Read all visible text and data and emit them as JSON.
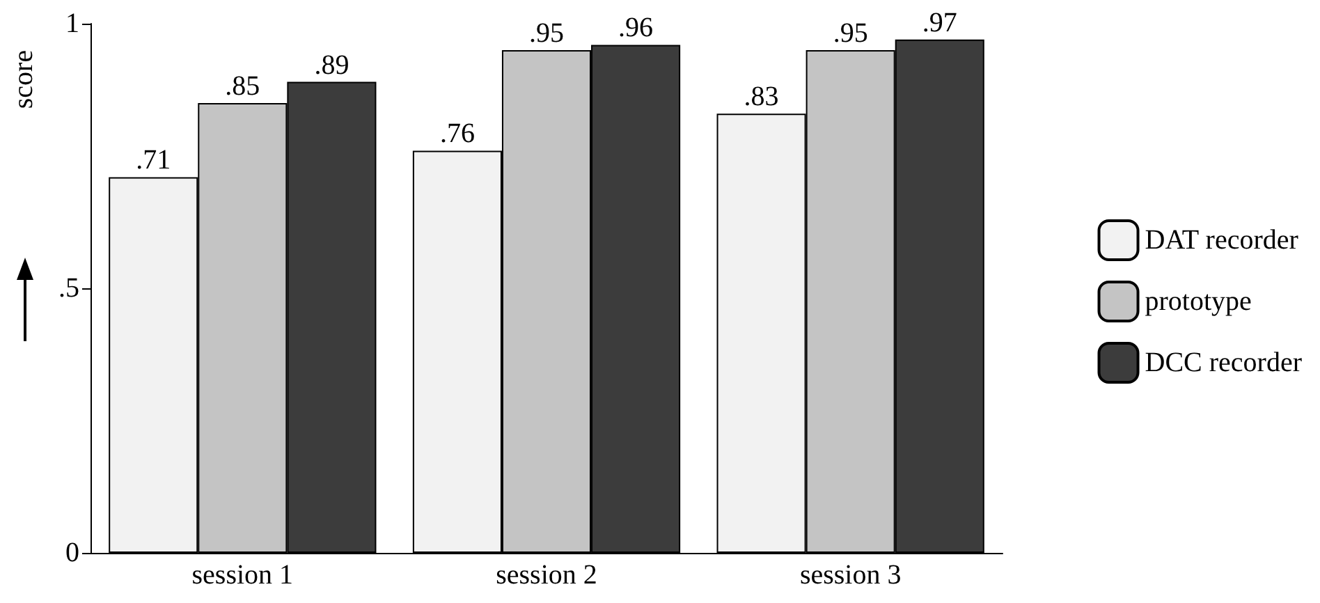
{
  "chart_data": {
    "type": "bar",
    "ylabel": "score",
    "categories": [
      "session 1",
      "session 2",
      "session 3"
    ],
    "series": [
      {
        "name": "DAT recorder",
        "color": "#f2f2f2",
        "values": [
          0.71,
          0.76,
          0.83
        ],
        "value_labels": [
          ".71",
          ".76",
          ".83"
        ]
      },
      {
        "name": "prototype",
        "color": "#c4c4c4",
        "values": [
          0.85,
          0.95,
          0.95
        ],
        "value_labels": [
          ".85",
          ".95",
          ".95"
        ]
      },
      {
        "name": "DCC recorder",
        "color": "#3c3c3c",
        "values": [
          0.89,
          0.96,
          0.97
        ],
        "value_labels": [
          ".89",
          ".96",
          ".97"
        ]
      }
    ],
    "ylim": [
      0,
      1
    ],
    "yticks": [
      0,
      {
        "value": 0.5,
        "label": ".5"
      },
      1
    ],
    "legend": "right"
  }
}
